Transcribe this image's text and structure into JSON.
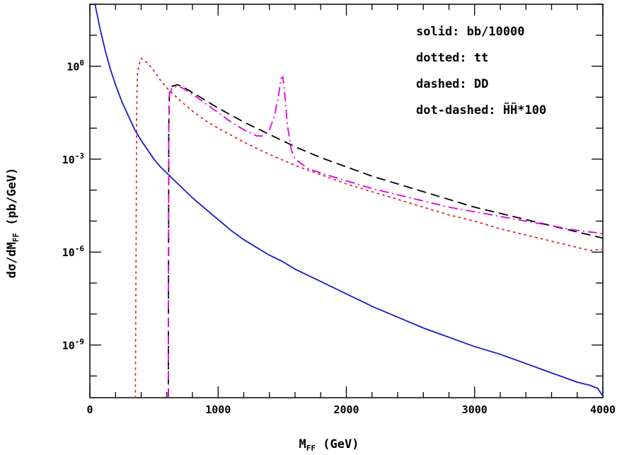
{
  "chart_data": {
    "type": "line",
    "xlabel": "M",
    "xlabel_sub": "FF",
    "xlabel_unit": " (GeV)",
    "ylabel": "dσ/dM",
    "ylabel_sub": "FF",
    "ylabel_unit": " (pb/GeV)",
    "xlim": [
      0,
      4000
    ],
    "ylim_log10": [
      -10.7,
      2
    ],
    "y_scale": "log",
    "x_ticks": [
      0,
      1000,
      2000,
      3000,
      4000
    ],
    "x_tick_labels": [
      "0",
      "1000",
      "2000",
      "3000",
      "4000"
    ],
    "y_ticks_log10": [
      0,
      -3,
      -6,
      -9
    ],
    "y_tick_labels": [
      {
        "base": "10",
        "exp": "0"
      },
      {
        "base": "10",
        "exp": "-3"
      },
      {
        "base": "10",
        "exp": "-6"
      },
      {
        "base": "10",
        "exp": "-9"
      }
    ],
    "legend": [
      {
        "label": "solid: bb/10000",
        "style": "solid",
        "color": "#1a1acc"
      },
      {
        "label": "dotted: tt",
        "style": "dotted",
        "color": "#e02020"
      },
      {
        "label": "dashed: DD",
        "style": "dashed",
        "color": "#000000"
      },
      {
        "label": "dot-dashed: H̃H̃*100",
        "style": "dot-dashed",
        "color": "#e000e0"
      }
    ],
    "series": [
      {
        "style": "solid",
        "color": "#1a1acc",
        "points": [
          [
            40,
            2.0
          ],
          [
            80,
            1.2
          ],
          [
            120,
            0.5
          ],
          [
            160,
            -0.1
          ],
          [
            200,
            -0.6
          ],
          [
            250,
            -1.15
          ],
          [
            300,
            -1.6
          ],
          [
            350,
            -2.05
          ],
          [
            400,
            -2.4
          ],
          [
            450,
            -2.7
          ],
          [
            500,
            -3.0
          ],
          [
            550,
            -3.25
          ],
          [
            600,
            -3.45
          ],
          [
            650,
            -3.65
          ],
          [
            700,
            -3.85
          ],
          [
            800,
            -4.25
          ],
          [
            900,
            -4.6
          ],
          [
            1000,
            -4.95
          ],
          [
            1100,
            -5.3
          ],
          [
            1200,
            -5.6
          ],
          [
            1300,
            -5.85
          ],
          [
            1400,
            -6.1
          ],
          [
            1500,
            -6.3
          ],
          [
            1600,
            -6.55
          ],
          [
            1700,
            -6.75
          ],
          [
            1800,
            -6.95
          ],
          [
            1900,
            -7.15
          ],
          [
            2000,
            -7.35
          ],
          [
            2200,
            -7.75
          ],
          [
            2400,
            -8.1
          ],
          [
            2600,
            -8.45
          ],
          [
            2800,
            -8.75
          ],
          [
            3000,
            -9.05
          ],
          [
            3200,
            -9.3
          ],
          [
            3400,
            -9.6
          ],
          [
            3600,
            -9.9
          ],
          [
            3700,
            -10.05
          ],
          [
            3800,
            -10.2
          ],
          [
            3900,
            -10.3
          ],
          [
            3960,
            -10.4
          ],
          [
            4000,
            -10.65
          ]
        ]
      },
      {
        "style": "dotted",
        "color": "#e02020",
        "points": [
          [
            355,
            -10.7
          ],
          [
            360,
            -6.0
          ],
          [
            365,
            -1.5
          ],
          [
            370,
            -0.3
          ],
          [
            380,
            0.0
          ],
          [
            400,
            0.25
          ],
          [
            420,
            0.2
          ],
          [
            450,
            0.1
          ],
          [
            500,
            -0.15
          ],
          [
            550,
            -0.45
          ],
          [
            600,
            -0.7
          ],
          [
            650,
            -0.9
          ],
          [
            700,
            -1.1
          ],
          [
            800,
            -1.45
          ],
          [
            900,
            -1.75
          ],
          [
            1000,
            -2.0
          ],
          [
            1200,
            -2.45
          ],
          [
            1400,
            -2.85
          ],
          [
            1600,
            -3.2
          ],
          [
            1800,
            -3.5
          ],
          [
            2000,
            -3.8
          ],
          [
            2200,
            -4.05
          ],
          [
            2400,
            -4.3
          ],
          [
            2600,
            -4.55
          ],
          [
            2800,
            -4.8
          ],
          [
            3000,
            -5.0
          ],
          [
            3200,
            -5.25
          ],
          [
            3400,
            -5.45
          ],
          [
            3600,
            -5.65
          ],
          [
            3800,
            -5.85
          ],
          [
            3900,
            -5.95
          ],
          [
            4000,
            -5.9
          ]
        ]
      },
      {
        "style": "dashed",
        "color": "#000000",
        "points": [
          [
            612,
            -10.7
          ],
          [
            615,
            -2.0
          ],
          [
            620,
            -0.9
          ],
          [
            640,
            -0.65
          ],
          [
            680,
            -0.6
          ],
          [
            720,
            -0.65
          ],
          [
            800,
            -0.85
          ],
          [
            900,
            -1.1
          ],
          [
            1000,
            -1.35
          ],
          [
            1200,
            -1.8
          ],
          [
            1400,
            -2.2
          ],
          [
            1600,
            -2.6
          ],
          [
            1800,
            -2.95
          ],
          [
            2000,
            -3.25
          ],
          [
            2200,
            -3.55
          ],
          [
            2400,
            -3.8
          ],
          [
            2600,
            -4.05
          ],
          [
            2800,
            -4.3
          ],
          [
            3000,
            -4.55
          ],
          [
            3200,
            -4.75
          ],
          [
            3400,
            -4.95
          ],
          [
            3600,
            -5.15
          ],
          [
            3800,
            -5.35
          ],
          [
            4000,
            -5.55
          ]
        ]
      },
      {
        "style": "dot-dashed",
        "color": "#e000e0",
        "points": [
          [
            612,
            -10.7
          ],
          [
            615,
            -2.0
          ],
          [
            620,
            -0.9
          ],
          [
            640,
            -0.7
          ],
          [
            680,
            -0.65
          ],
          [
            720,
            -0.7
          ],
          [
            800,
            -0.9
          ],
          [
            900,
            -1.2
          ],
          [
            1000,
            -1.5
          ],
          [
            1100,
            -1.8
          ],
          [
            1200,
            -2.05
          ],
          [
            1300,
            -2.25
          ],
          [
            1350,
            -2.25
          ],
          [
            1400,
            -2.05
          ],
          [
            1440,
            -1.6
          ],
          [
            1470,
            -1.0
          ],
          [
            1490,
            -0.4
          ],
          [
            1505,
            -0.35
          ],
          [
            1520,
            -0.9
          ],
          [
            1540,
            -1.9
          ],
          [
            1570,
            -2.7
          ],
          [
            1600,
            -3.0
          ],
          [
            1700,
            -3.3
          ],
          [
            1800,
            -3.45
          ],
          [
            2000,
            -3.7
          ],
          [
            2200,
            -3.95
          ],
          [
            2400,
            -4.15
          ],
          [
            2600,
            -4.35
          ],
          [
            2800,
            -4.55
          ],
          [
            3000,
            -4.7
          ],
          [
            3200,
            -4.85
          ],
          [
            3400,
            -5.0
          ],
          [
            3600,
            -5.15
          ],
          [
            3800,
            -5.3
          ],
          [
            4000,
            -5.4
          ]
        ]
      }
    ]
  }
}
